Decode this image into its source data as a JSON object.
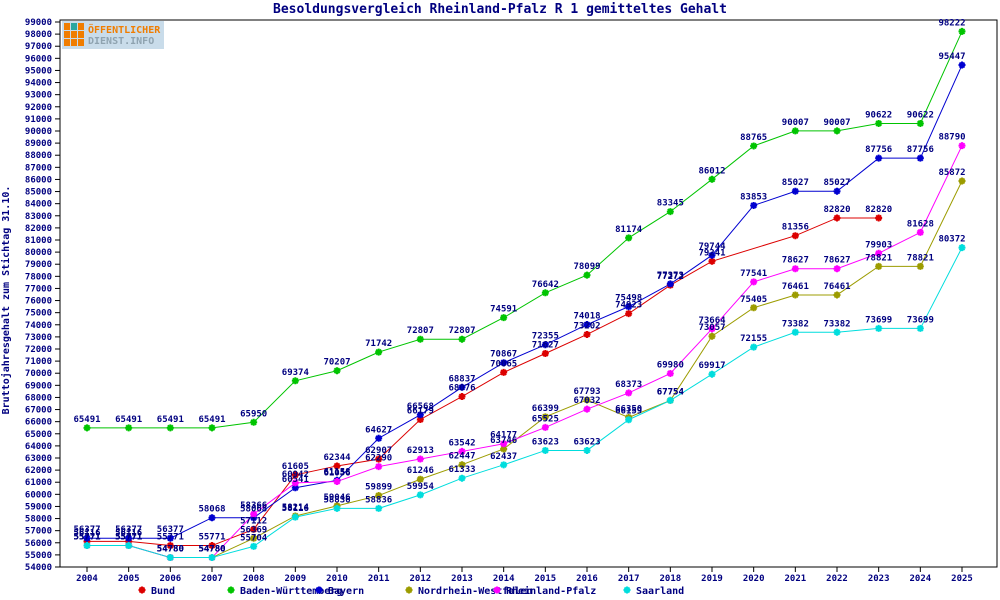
{
  "title": "Besoldungsvergleich Rheinland-Pfalz R 1 gemitteltes Gehalt",
  "logo": {
    "line1": "ÖFFENTLICHER",
    "line2": "DIENST.INFO"
  },
  "y_axis_title": "Bruttojahresgehalt zum Stichtag 31.10.",
  "colors": {
    "text_navy": "#000080",
    "axis_black": "#000000",
    "logo_orange": "#f07d00",
    "logo_teal": "#2ba6a0",
    "logo_bg": "#c9dcea",
    "logo_gray": "#8fa3b0"
  },
  "chart_data": {
    "type": "line",
    "x": [
      2004,
      2005,
      2006,
      2007,
      2008,
      2009,
      2010,
      2011,
      2012,
      2013,
      2014,
      2015,
      2016,
      2017,
      2018,
      2019,
      2020,
      2021,
      2022,
      2023,
      2024,
      2025
    ],
    "ylim": [
      54000,
      99000
    ],
    "ytick_step": 1000,
    "grid": false,
    "legend_position": "bottom",
    "marker": "star",
    "series": [
      {
        "name": "Bund",
        "color": "#dc0000",
        "values": [
          56116,
          56116,
          55771,
          55771,
          57112,
          61605,
          62344,
          62907,
          66179,
          68076,
          70065,
          71627,
          73202,
          74923,
          77272,
          79241,
          null,
          81356,
          82820,
          82820,
          null,
          null
        ]
      },
      {
        "name": "Baden-Württemberg",
        "color": "#00c400",
        "values": [
          65491,
          65491,
          65491,
          65491,
          65950,
          69374,
          70207,
          71742,
          72807,
          72807,
          74591,
          76642,
          78099,
          81174,
          83345,
          86012,
          88765,
          90007,
          90007,
          90622,
          90622,
          98222
        ]
      },
      {
        "name": "Bayern",
        "color": "#0000d0",
        "values": [
          56377,
          56377,
          56377,
          58068,
          58068,
          60541,
          61158,
          64627,
          66568,
          68837,
          70867,
          72355,
          74018,
          75498,
          77373,
          79744,
          83853,
          85027,
          85027,
          87756,
          87756,
          95447
        ]
      },
      {
        "name": "Nordrhein-Westfalen",
        "color": "#9c9c00",
        "values": [
          55771,
          55771,
          54780,
          54780,
          56369,
          58214,
          59046,
          59899,
          61246,
          62447,
          63746,
          66399,
          67793,
          66350,
          67754,
          73057,
          75405,
          76461,
          76461,
          78821,
          78821,
          85872
        ]
      },
      {
        "name": "Rheinland-Pfalz",
        "color": "#ff00ff",
        "values": [
          55771,
          55771,
          54780,
          54780,
          58366,
          60942,
          61056,
          62290,
          62913,
          63542,
          64177,
          65525,
          67032,
          68373,
          69980,
          73664,
          77541,
          78627,
          78627,
          79903,
          81628,
          88790
        ]
      },
      {
        "name": "Saarland",
        "color": "#00dddd",
        "values": [
          55771,
          55771,
          54780,
          54780,
          55704,
          58116,
          58836,
          58836,
          59954,
          61333,
          62437,
          63623,
          63623,
          66159,
          67754,
          69917,
          72155,
          73382,
          73382,
          73699,
          73699,
          80372
        ]
      }
    ]
  }
}
